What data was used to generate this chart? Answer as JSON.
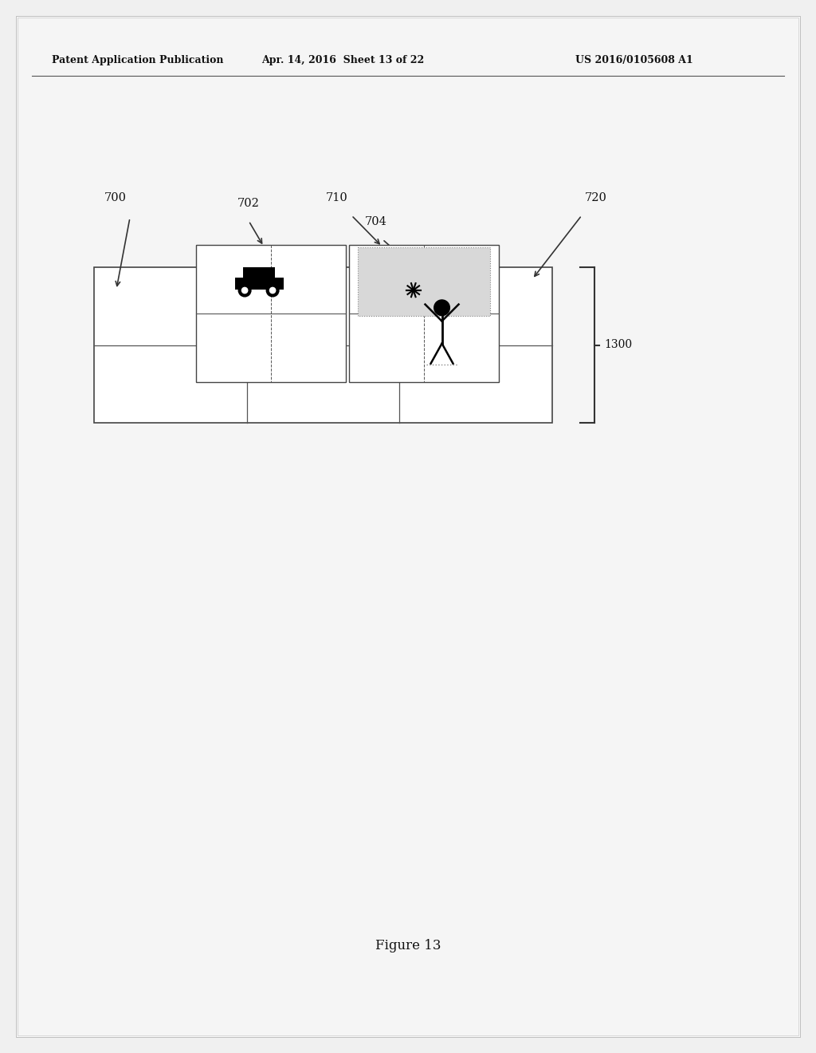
{
  "header_text_left": "Patent Application Publication",
  "header_text_mid": "Apr. 14, 2016  Sheet 13 of 22",
  "header_text_right": "US 2016/0105608 A1",
  "figure_caption": "Figure 13",
  "label_700": "700",
  "label_702": "702",
  "label_704": "704",
  "label_710": "710",
  "label_720": "720",
  "label_1300": "1300",
  "page_bg": "#f0f0f0",
  "inner_page_bg": "#e8e8e8",
  "box_edge": "#444444",
  "line_color": "#555555"
}
